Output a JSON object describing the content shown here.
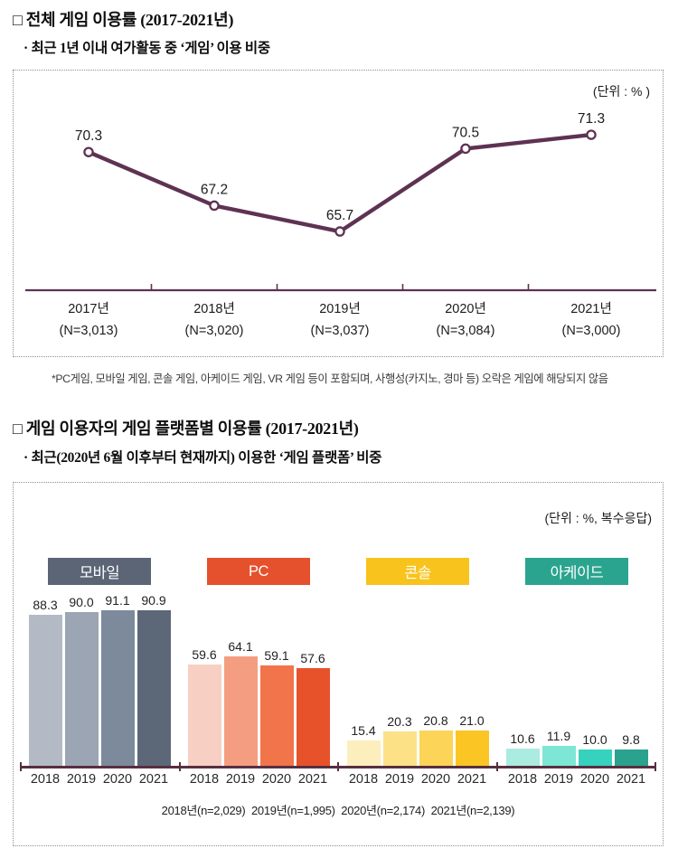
{
  "section1": {
    "title": "□ 전체 게임 이용률 (2017-2021년)",
    "subtitle": "· 최근 1년 이내 여가활동 중 ‘게임’ 이용 비중",
    "footnote": "*PC게임, 모바일 게임, 콘솔 게임, 아케이드 게임, VR 게임 등이 포함되며, 사행성(카지노, 경마 등) 오락은 게임에 해당되지 않음"
  },
  "section2": {
    "title": "□ 게임 이용자의 게임 플랫폼별 이용률 (2017-2021년)",
    "subtitle": "· 최근(2020년 6월 이후부터 현재까지) 이용한 ‘게임 플랫폼’ 비중"
  },
  "chart_data": [
    {
      "type": "line",
      "title": "전체 게임 이용률 (2017-2021년)",
      "unit_note": "(단위 : % )",
      "x": [
        "2017년",
        "2018년",
        "2019년",
        "2020년",
        "2021년"
      ],
      "sample_sizes": [
        "(N=3,013)",
        "(N=3,020)",
        "(N=3,037)",
        "(N=3,084)",
        "(N=3,000)"
      ],
      "values": [
        70.3,
        67.2,
        65.7,
        70.5,
        71.3
      ],
      "value_labels": [
        "70.3",
        "67.2",
        "65.7",
        "70.5",
        "71.3"
      ],
      "ylim": [
        62,
        76
      ],
      "grid": false,
      "legend": "none",
      "line_color": "#5e3253",
      "axis_color": "#5e3253",
      "marker": "open-circle"
    },
    {
      "type": "bar",
      "title": "게임 이용자의 게임 플랫폼별 이용률 (2017-2021년)",
      "unit_note": "(단위 : %, 복수응답)",
      "categories": [
        "2018",
        "2019",
        "2020",
        "2021"
      ],
      "series": [
        {
          "name": "모바일",
          "legend_color": "#5b6576",
          "bar_colors": [
            "#b4bac5",
            "#9ca5b3",
            "#7c8a9c",
            "#5c6778"
          ],
          "values": [
            88.3,
            90.0,
            91.1,
            90.9
          ],
          "labels": [
            "88.3",
            "90.0",
            "91.1",
            "90.9"
          ]
        },
        {
          "name": "PC",
          "legend_color": "#e5512c",
          "bar_colors": [
            "#f8cfc3",
            "#f49d81",
            "#f1744a",
            "#e8522a"
          ],
          "values": [
            59.6,
            64.1,
            59.1,
            57.6
          ],
          "labels": [
            "59.6",
            "64.1",
            "59.1",
            "57.6"
          ]
        },
        {
          "name": "콘솔",
          "legend_color": "#f9c31d",
          "bar_colors": [
            "#fdeebe",
            "#fce187",
            "#fcd457",
            "#fbc524"
          ],
          "values": [
            15.4,
            20.3,
            20.8,
            21.0
          ],
          "labels": [
            "15.4",
            "20.3",
            "20.8",
            "21.0"
          ]
        },
        {
          "name": "아케이드",
          "legend_color": "#2ba48f",
          "bar_colors": [
            "#aaecdf",
            "#7ee6d5",
            "#36d2be",
            "#2aa28d"
          ],
          "values": [
            10.6,
            11.9,
            10.0,
            9.8
          ],
          "labels": [
            "10.6",
            "11.9",
            "10.0",
            "9.8"
          ]
        }
      ],
      "ylim": [
        0,
        100
      ],
      "grid": false,
      "legend_position": "top",
      "axis_color": "#572f40",
      "sample_note": "2018년(n=2,029)  2019년(n=1,995)  2020년(n=2,174)  2021년(n=2,139)"
    }
  ]
}
